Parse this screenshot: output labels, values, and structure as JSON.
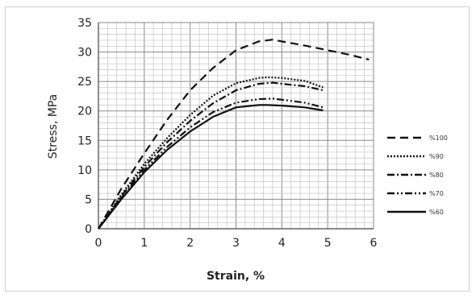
{
  "chart_data": {
    "type": "line",
    "title": "",
    "xlabel": "Strain, %",
    "ylabel": "Stress, MPa",
    "xlim": [
      0,
      6
    ],
    "ylim": [
      0,
      35
    ],
    "x_ticks": [
      "0",
      "1",
      "2",
      "3",
      "4",
      "5",
      "6"
    ],
    "y_ticks": [
      "0",
      "5",
      "10",
      "15",
      "20",
      "25",
      "30",
      "35"
    ],
    "grid": true,
    "legend_position": "right",
    "series": [
      {
        "name": "%100",
        "dash": "long-dash",
        "color": "#111111",
        "x": [
          0,
          0.5,
          1,
          1.5,
          2,
          2.5,
          3,
          3.5,
          3.8,
          4,
          4.5,
          5,
          5.5,
          5.9
        ],
        "y": [
          0,
          6.8,
          12.8,
          18.5,
          23.5,
          27.3,
          30.3,
          31.8,
          32.1,
          31.8,
          31.1,
          30.3,
          29.5,
          28.7
        ]
      },
      {
        "name": "%90",
        "dash": "dotted",
        "color": "#111111",
        "x": [
          0,
          0.5,
          1,
          1.5,
          2,
          2.5,
          3,
          3.5,
          3.7,
          4,
          4.5,
          4.9
        ],
        "y": [
          0,
          5.8,
          11,
          15.4,
          19.3,
          22.6,
          24.7,
          25.6,
          25.7,
          25.6,
          25.1,
          24.0
        ]
      },
      {
        "name": "%80",
        "dash": "dash-dot",
        "color": "#111111",
        "x": [
          0,
          0.5,
          1,
          1.5,
          2,
          2.5,
          3,
          3.5,
          3.8,
          4,
          4.5,
          4.9
        ],
        "y": [
          0,
          5.5,
          10.5,
          14.7,
          18.3,
          21.3,
          23.5,
          24.6,
          24.8,
          24.6,
          24.2,
          23.5
        ]
      },
      {
        "name": "%70",
        "dash": "dash-dot-dot",
        "color": "#111111",
        "x": [
          0,
          0.5,
          1,
          1.5,
          2,
          2.5,
          3,
          3.5,
          3.8,
          4,
          4.5,
          4.9
        ],
        "y": [
          0,
          5.2,
          10.0,
          13.9,
          17.2,
          19.8,
          21.4,
          22.0,
          22.1,
          21.9,
          21.4,
          20.6
        ]
      },
      {
        "name": "%60",
        "dash": "solid",
        "color": "#111111",
        "x": [
          0,
          0.5,
          1,
          1.5,
          2,
          2.5,
          3,
          3.5,
          3.7,
          4,
          4.5,
          4.9
        ],
        "y": [
          0,
          5.0,
          9.6,
          13.4,
          16.5,
          19.0,
          20.6,
          21.0,
          21.0,
          20.9,
          20.6,
          20.1
        ]
      }
    ]
  }
}
